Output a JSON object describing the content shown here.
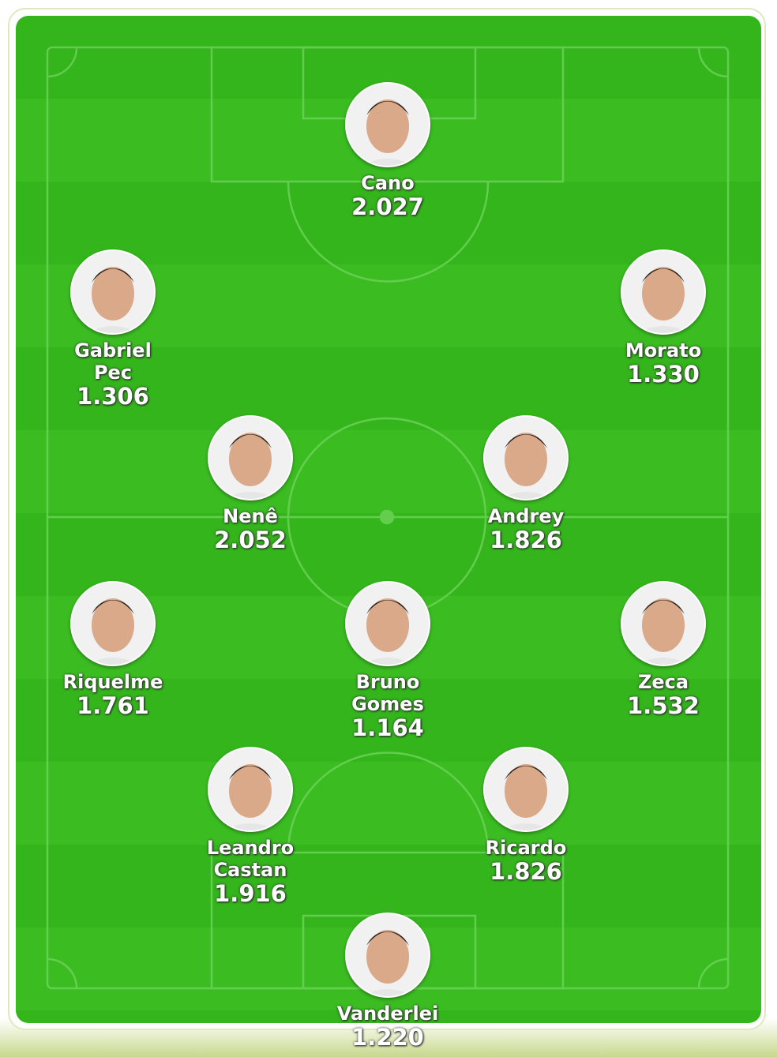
{
  "colors": {
    "pitch": "#34b51c",
    "lines": "#6fd35a",
    "text": "#ffffff"
  },
  "players": [
    {
      "name": "Cano",
      "value": "2.027"
    },
    {
      "name": "Gabriel Pec",
      "value": "1.306"
    },
    {
      "name": "Morato",
      "value": "1.330"
    },
    {
      "name": "Nenê",
      "value": "2.052"
    },
    {
      "name": "Andrey",
      "value": "1.826"
    },
    {
      "name": "Riquelme",
      "value": "1.761"
    },
    {
      "name": "Bruno Gomes",
      "value": "1.164"
    },
    {
      "name": "Zeca",
      "value": "1.532"
    },
    {
      "name": "Leandro Castan",
      "value": "1.916"
    },
    {
      "name": "Ricardo",
      "value": "1.826"
    },
    {
      "name": "Vanderlei",
      "value": "1.220"
    }
  ]
}
